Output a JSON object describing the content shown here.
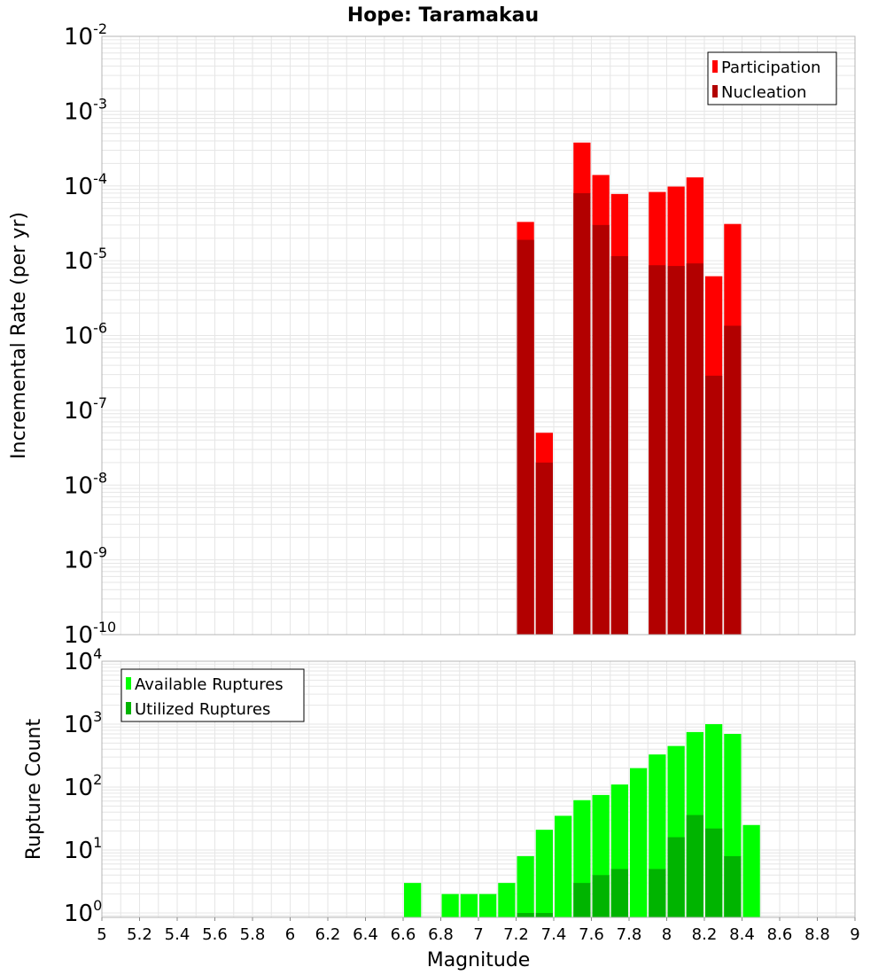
{
  "title": "Hope: Taramakau",
  "colors": {
    "participation": "#ff0000",
    "nucleation": "#b20000",
    "available": "#00ff00",
    "utilized": "#00b400",
    "grid": "#e6e6e6",
    "frame": "#b4b4b4"
  },
  "chart_data": [
    {
      "type": "bar",
      "name": "rates",
      "title": "Hope: Taramakau",
      "xlabel": "Magnitude",
      "ylabel": "Incremental Rate (per yr)",
      "yscale": "log",
      "ylim_exp": [
        -10,
        -2
      ],
      "y_tick_exponents": [
        "-10",
        "-9",
        "-8",
        "-7",
        "-6",
        "-5",
        "-4",
        "-3",
        "-2"
      ],
      "xlim": [
        5,
        9
      ],
      "bin_width": 0.1,
      "legend": {
        "position": "top-right",
        "entries": [
          "Participation",
          "Nucleation"
        ]
      },
      "series": [
        {
          "name": "Participation",
          "x": [
            7.25,
            7.35,
            7.55,
            7.65,
            7.75,
            7.95,
            8.05,
            8.15,
            8.25,
            8.35
          ],
          "values": [
            3.3e-05,
            5e-08,
            0.00038,
            0.00014,
            7.8e-05,
            8.3e-05,
            9.8e-05,
            0.00013,
            6.2e-06,
            3.1e-05
          ]
        },
        {
          "name": "Nucleation",
          "x": [
            7.25,
            7.35,
            7.55,
            7.65,
            7.75,
            7.95,
            8.05,
            8.15,
            8.25,
            8.35
          ],
          "values": [
            1.9e-05,
            2e-08,
            8e-05,
            3e-05,
            1.15e-05,
            8.7e-06,
            8.5e-06,
            9.2e-06,
            2.9e-07,
            1.35e-06
          ]
        }
      ]
    },
    {
      "type": "bar",
      "name": "counts",
      "xlabel": "Magnitude",
      "ylabel": "Rupture Count",
      "yscale": "log",
      "ylim_exp": [
        -0.07,
        4
      ],
      "y_tick_exponents": [
        "0",
        "1",
        "2",
        "3",
        "4"
      ],
      "xlim": [
        5,
        9
      ],
      "x_ticks": [
        "5",
        "5.2",
        "5.4",
        "5.6",
        "5.8",
        "6",
        "6.2",
        "6.4",
        "6.6",
        "6.8",
        "7",
        "7.2",
        "7.4",
        "7.6",
        "7.8",
        "8",
        "8.2",
        "8.4",
        "8.6",
        "8.8",
        "9"
      ],
      "bin_width": 0.1,
      "legend": {
        "position": "top-left",
        "entries": [
          "Available Ruptures",
          "Utilized Ruptures"
        ]
      },
      "series": [
        {
          "name": "Available Ruptures",
          "x": [
            6.65,
            6.85,
            6.95,
            7.05,
            7.15,
            7.25,
            7.35,
            7.45,
            7.55,
            7.65,
            7.75,
            7.85,
            7.95,
            8.05,
            8.15,
            8.25,
            8.35,
            8.45
          ],
          "values": [
            3,
            2,
            2,
            2,
            3,
            8,
            21,
            35,
            62,
            75,
            110,
            200,
            330,
            450,
            750,
            1000,
            700,
            25
          ]
        },
        {
          "name": "Utilized Ruptures",
          "x": [
            7.25,
            7.35,
            7.55,
            7.65,
            7.75,
            7.95,
            8.05,
            8.15,
            8.25,
            8.35
          ],
          "values": [
            1,
            1,
            3,
            4,
            5,
            5,
            16,
            36,
            22,
            8
          ]
        }
      ]
    }
  ]
}
